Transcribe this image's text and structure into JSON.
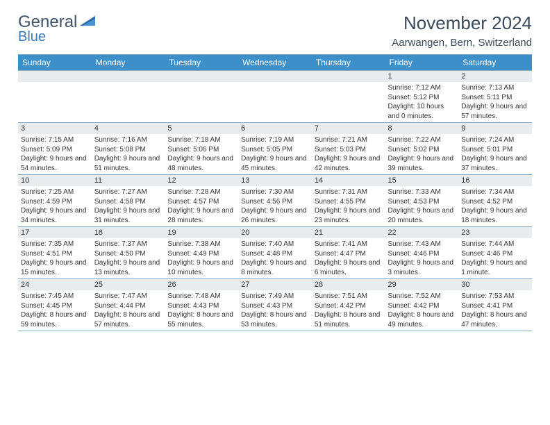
{
  "logo": {
    "text1": "General",
    "text2": "Blue"
  },
  "title": "November 2024",
  "location": "Aarwangen, Bern, Switzerland",
  "days_of_week": [
    "Sunday",
    "Monday",
    "Tuesday",
    "Wednesday",
    "Thursday",
    "Friday",
    "Saturday"
  ],
  "colors": {
    "header_bg": "#3d8fc9",
    "header_fg": "#ffffff",
    "strip_bg": "#e9ecef",
    "border": "#8aa9c2",
    "title_fg": "#3b4a5a",
    "logo_gray": "#415568",
    "logo_blue": "#3d7cb8"
  },
  "weeks": [
    [
      {
        "n": "",
        "sr": "",
        "ss": "",
        "dl": ""
      },
      {
        "n": "",
        "sr": "",
        "ss": "",
        "dl": ""
      },
      {
        "n": "",
        "sr": "",
        "ss": "",
        "dl": ""
      },
      {
        "n": "",
        "sr": "",
        "ss": "",
        "dl": ""
      },
      {
        "n": "",
        "sr": "",
        "ss": "",
        "dl": ""
      },
      {
        "n": "1",
        "sr": "Sunrise: 7:12 AM",
        "ss": "Sunset: 5:12 PM",
        "dl": "Daylight: 10 hours and 0 minutes."
      },
      {
        "n": "2",
        "sr": "Sunrise: 7:13 AM",
        "ss": "Sunset: 5:11 PM",
        "dl": "Daylight: 9 hours and 57 minutes."
      }
    ],
    [
      {
        "n": "3",
        "sr": "Sunrise: 7:15 AM",
        "ss": "Sunset: 5:09 PM",
        "dl": "Daylight: 9 hours and 54 minutes."
      },
      {
        "n": "4",
        "sr": "Sunrise: 7:16 AM",
        "ss": "Sunset: 5:08 PM",
        "dl": "Daylight: 9 hours and 51 minutes."
      },
      {
        "n": "5",
        "sr": "Sunrise: 7:18 AM",
        "ss": "Sunset: 5:06 PM",
        "dl": "Daylight: 9 hours and 48 minutes."
      },
      {
        "n": "6",
        "sr": "Sunrise: 7:19 AM",
        "ss": "Sunset: 5:05 PM",
        "dl": "Daylight: 9 hours and 45 minutes."
      },
      {
        "n": "7",
        "sr": "Sunrise: 7:21 AM",
        "ss": "Sunset: 5:03 PM",
        "dl": "Daylight: 9 hours and 42 minutes."
      },
      {
        "n": "8",
        "sr": "Sunrise: 7:22 AM",
        "ss": "Sunset: 5:02 PM",
        "dl": "Daylight: 9 hours and 39 minutes."
      },
      {
        "n": "9",
        "sr": "Sunrise: 7:24 AM",
        "ss": "Sunset: 5:01 PM",
        "dl": "Daylight: 9 hours and 37 minutes."
      }
    ],
    [
      {
        "n": "10",
        "sr": "Sunrise: 7:25 AM",
        "ss": "Sunset: 4:59 PM",
        "dl": "Daylight: 9 hours and 34 minutes."
      },
      {
        "n": "11",
        "sr": "Sunrise: 7:27 AM",
        "ss": "Sunset: 4:58 PM",
        "dl": "Daylight: 9 hours and 31 minutes."
      },
      {
        "n": "12",
        "sr": "Sunrise: 7:28 AM",
        "ss": "Sunset: 4:57 PM",
        "dl": "Daylight: 9 hours and 28 minutes."
      },
      {
        "n": "13",
        "sr": "Sunrise: 7:30 AM",
        "ss": "Sunset: 4:56 PM",
        "dl": "Daylight: 9 hours and 26 minutes."
      },
      {
        "n": "14",
        "sr": "Sunrise: 7:31 AM",
        "ss": "Sunset: 4:55 PM",
        "dl": "Daylight: 9 hours and 23 minutes."
      },
      {
        "n": "15",
        "sr": "Sunrise: 7:33 AM",
        "ss": "Sunset: 4:53 PM",
        "dl": "Daylight: 9 hours and 20 minutes."
      },
      {
        "n": "16",
        "sr": "Sunrise: 7:34 AM",
        "ss": "Sunset: 4:52 PM",
        "dl": "Daylight: 9 hours and 18 minutes."
      }
    ],
    [
      {
        "n": "17",
        "sr": "Sunrise: 7:35 AM",
        "ss": "Sunset: 4:51 PM",
        "dl": "Daylight: 9 hours and 15 minutes."
      },
      {
        "n": "18",
        "sr": "Sunrise: 7:37 AM",
        "ss": "Sunset: 4:50 PM",
        "dl": "Daylight: 9 hours and 13 minutes."
      },
      {
        "n": "19",
        "sr": "Sunrise: 7:38 AM",
        "ss": "Sunset: 4:49 PM",
        "dl": "Daylight: 9 hours and 10 minutes."
      },
      {
        "n": "20",
        "sr": "Sunrise: 7:40 AM",
        "ss": "Sunset: 4:48 PM",
        "dl": "Daylight: 9 hours and 8 minutes."
      },
      {
        "n": "21",
        "sr": "Sunrise: 7:41 AM",
        "ss": "Sunset: 4:47 PM",
        "dl": "Daylight: 9 hours and 6 minutes."
      },
      {
        "n": "22",
        "sr": "Sunrise: 7:43 AM",
        "ss": "Sunset: 4:46 PM",
        "dl": "Daylight: 9 hours and 3 minutes."
      },
      {
        "n": "23",
        "sr": "Sunrise: 7:44 AM",
        "ss": "Sunset: 4:46 PM",
        "dl": "Daylight: 9 hours and 1 minute."
      }
    ],
    [
      {
        "n": "24",
        "sr": "Sunrise: 7:45 AM",
        "ss": "Sunset: 4:45 PM",
        "dl": "Daylight: 8 hours and 59 minutes."
      },
      {
        "n": "25",
        "sr": "Sunrise: 7:47 AM",
        "ss": "Sunset: 4:44 PM",
        "dl": "Daylight: 8 hours and 57 minutes."
      },
      {
        "n": "26",
        "sr": "Sunrise: 7:48 AM",
        "ss": "Sunset: 4:43 PM",
        "dl": "Daylight: 8 hours and 55 minutes."
      },
      {
        "n": "27",
        "sr": "Sunrise: 7:49 AM",
        "ss": "Sunset: 4:43 PM",
        "dl": "Daylight: 8 hours and 53 minutes."
      },
      {
        "n": "28",
        "sr": "Sunrise: 7:51 AM",
        "ss": "Sunset: 4:42 PM",
        "dl": "Daylight: 8 hours and 51 minutes."
      },
      {
        "n": "29",
        "sr": "Sunrise: 7:52 AM",
        "ss": "Sunset: 4:42 PM",
        "dl": "Daylight: 8 hours and 49 minutes."
      },
      {
        "n": "30",
        "sr": "Sunrise: 7:53 AM",
        "ss": "Sunset: 4:41 PM",
        "dl": "Daylight: 8 hours and 47 minutes."
      }
    ]
  ]
}
